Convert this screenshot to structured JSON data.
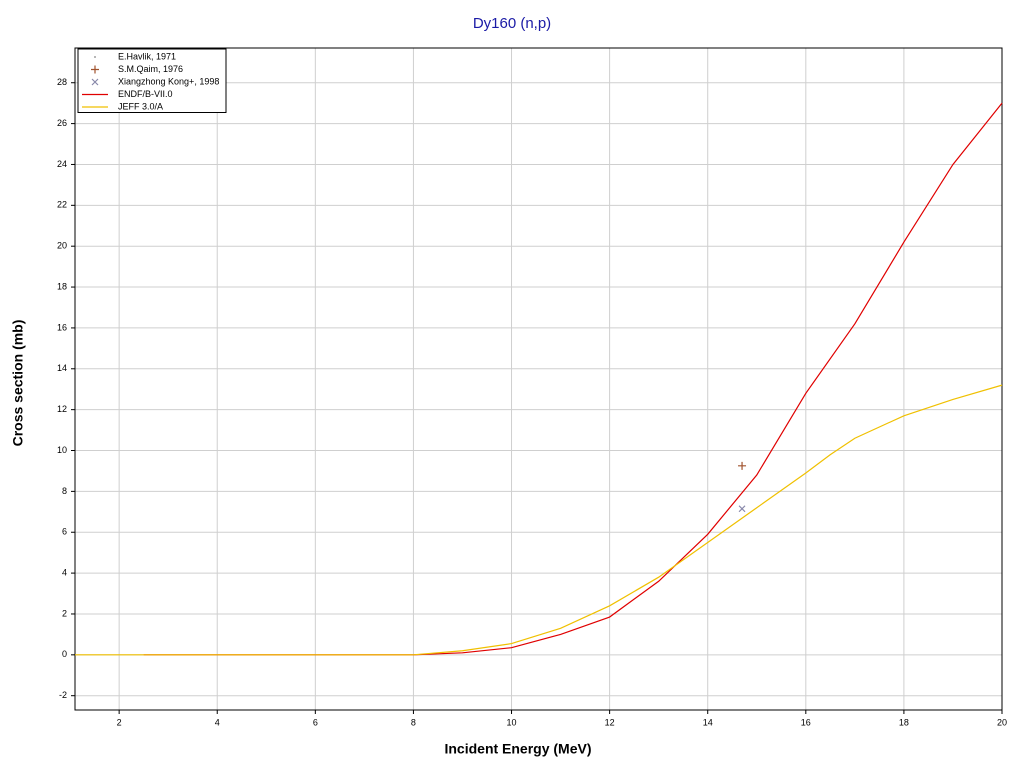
{
  "chart_data": {
    "type": "line",
    "title": "Dy160 (n,p)",
    "x_label": "Incident Energy (MeV)",
    "y_label": "Cross section (mb)",
    "xlim": [
      1.1,
      20
    ],
    "ylim": [
      -2.7,
      29.7
    ],
    "xticks": [
      2,
      4,
      6,
      8,
      10,
      12,
      14,
      16,
      18,
      20
    ],
    "yticks": [
      -2,
      0,
      2,
      4,
      6,
      8,
      10,
      12,
      14,
      16,
      18,
      20,
      22,
      24,
      26,
      28
    ],
    "grid": true,
    "legend": "upper left",
    "series": [
      {
        "name": "E.Havlik, 1971",
        "type": "scatter",
        "marker": "dot",
        "color": "#aaaaaa",
        "x": [],
        "values": []
      },
      {
        "name": "S.M.Qaim, 1976",
        "type": "scatter",
        "marker": "plus",
        "color": "#a0522d",
        "x": [
          14.7
        ],
        "values": [
          9.25
        ]
      },
      {
        "name": "Xiangzhong Kong+, 1998",
        "type": "scatter",
        "marker": "cross",
        "color": "#8888aa",
        "x": [
          14.7
        ],
        "values": [
          7.15
        ]
      },
      {
        "name": "ENDF/B-VII.0",
        "type": "line",
        "color": "#e00000",
        "x": [
          2.5,
          8,
          9,
          10,
          11,
          12,
          13,
          14,
          15,
          16,
          17,
          18,
          19,
          20
        ],
        "values": [
          0,
          0,
          0.1,
          0.35,
          1,
          1.85,
          3.6,
          5.9,
          8.8,
          12.8,
          16.2,
          20.2,
          24,
          27
        ]
      },
      {
        "name": "JEFF 3.0/A",
        "type": "line",
        "color": "#f0c000",
        "x": [
          1.1,
          8,
          9,
          10,
          11,
          12,
          13,
          14,
          15,
          16,
          16.5,
          17,
          18,
          19,
          20
        ],
        "values": [
          0,
          0,
          0.2,
          0.55,
          1.3,
          2.4,
          3.8,
          5.5,
          7.2,
          8.9,
          9.8,
          10.6,
          11.7,
          12.5,
          13.2
        ]
      }
    ]
  }
}
